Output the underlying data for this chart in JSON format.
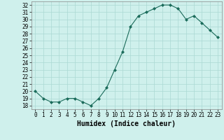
{
  "x": [
    0,
    1,
    2,
    3,
    4,
    5,
    6,
    7,
    8,
    9,
    10,
    11,
    12,
    13,
    14,
    15,
    16,
    17,
    18,
    19,
    20,
    21,
    22,
    23
  ],
  "y": [
    20,
    19,
    18.5,
    18.5,
    19,
    19,
    18.5,
    18,
    19,
    20.5,
    23,
    25.5,
    29,
    30.5,
    31,
    31.5,
    32,
    32,
    31.5,
    30,
    30.5,
    29.5,
    28.5,
    27.5
  ],
  "line_color": "#1a6b5a",
  "marker": "D",
  "marker_size": 2.0,
  "bg_color": "#cff0ec",
  "grid_color": "#aad8d3",
  "xlabel": "Humidex (Indice chaleur)",
  "xlim": [
    -0.5,
    23.5
  ],
  "ylim": [
    17.5,
    32.5
  ],
  "yticks": [
    18,
    19,
    20,
    21,
    22,
    23,
    24,
    25,
    26,
    27,
    28,
    29,
    30,
    31,
    32
  ],
  "xticks": [
    0,
    1,
    2,
    3,
    4,
    5,
    6,
    7,
    8,
    9,
    10,
    11,
    12,
    13,
    14,
    15,
    16,
    17,
    18,
    19,
    20,
    21,
    22,
    23
  ],
  "tick_fontsize": 5.5,
  "label_fontsize": 7.0
}
